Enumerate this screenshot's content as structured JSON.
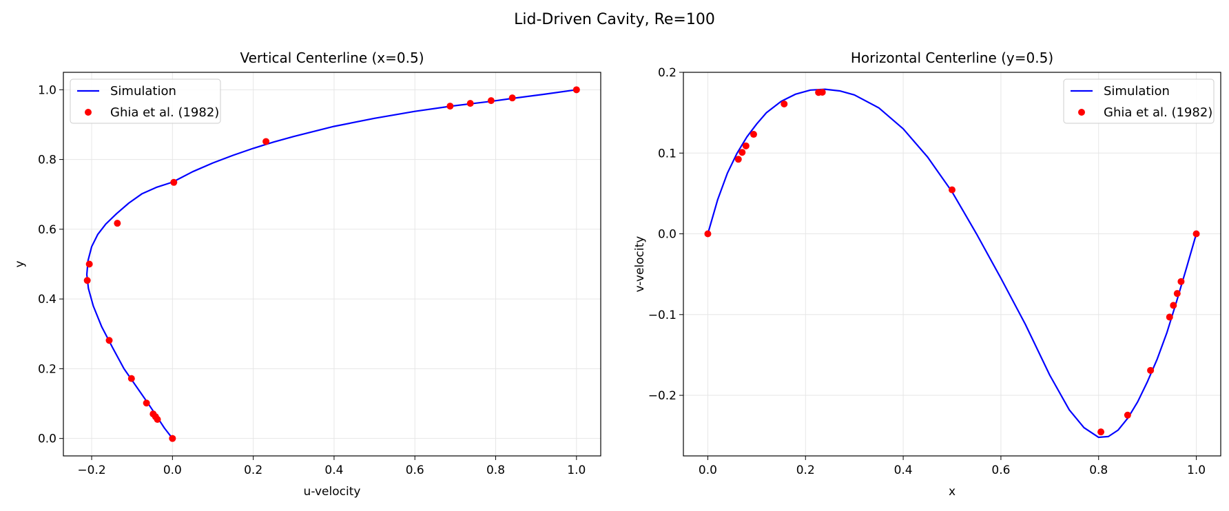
{
  "figure": {
    "suptitle": "Lid-Driven Cavity, Re=100"
  },
  "colors": {
    "simulation": "#0000ff",
    "reference": "#ff0000",
    "grid": "#e6e6e6"
  },
  "chart_data": [
    {
      "type": "line",
      "title": "Vertical Centerline (x=0.5)",
      "xlabel": "u-velocity",
      "ylabel": "y",
      "xlim": [
        -0.27,
        1.06
      ],
      "ylim": [
        -0.05,
        1.05
      ],
      "xticks": [
        -0.2,
        0.0,
        0.2,
        0.4,
        0.6,
        0.8,
        1.0
      ],
      "xtick_labels": [
        "−0.2",
        "0.0",
        "0.2",
        "0.4",
        "0.6",
        "0.8",
        "1.0"
      ],
      "yticks": [
        0.0,
        0.2,
        0.4,
        0.6,
        0.8,
        1.0
      ],
      "ytick_labels": [
        "0.0",
        "0.2",
        "0.4",
        "0.6",
        "0.8",
        "1.0"
      ],
      "grid": true,
      "legend_position": "upper-left",
      "series": [
        {
          "name": "Simulation",
          "style": "line",
          "x": [
            0.0,
            -0.02,
            -0.037,
            -0.06,
            -0.09,
            -0.12,
            -0.148,
            -0.175,
            -0.196,
            -0.208,
            -0.212,
            -0.209,
            -0.2,
            -0.185,
            -0.165,
            -0.138,
            -0.108,
            -0.075,
            -0.04,
            0.0,
            0.05,
            0.1,
            0.15,
            0.2,
            0.25,
            0.3,
            0.4,
            0.5,
            0.6,
            0.69,
            0.74,
            0.79,
            0.84,
            0.92,
            1.0
          ],
          "y": [
            0.0,
            0.03,
            0.06,
            0.1,
            0.15,
            0.2,
            0.26,
            0.32,
            0.38,
            0.43,
            0.47,
            0.51,
            0.55,
            0.585,
            0.615,
            0.645,
            0.675,
            0.702,
            0.72,
            0.735,
            0.765,
            0.79,
            0.812,
            0.832,
            0.85,
            0.866,
            0.895,
            0.918,
            0.938,
            0.953,
            0.96,
            0.967,
            0.975,
            0.987,
            1.0
          ]
        },
        {
          "name": "Ghia et al. (1982)",
          "style": "marker",
          "x": [
            0.0,
            -0.0372,
            -0.0419,
            -0.0478,
            -0.0643,
            -0.1015,
            -0.1566,
            -0.2109,
            -0.2058,
            -0.1364,
            0.0033,
            0.2315,
            0.6872,
            0.7372,
            0.7887,
            0.8412,
            1.0
          ],
          "y": [
            0.0,
            0.0547,
            0.0625,
            0.0703,
            0.1016,
            0.1719,
            0.2813,
            0.4531,
            0.5,
            0.6172,
            0.7344,
            0.8516,
            0.9531,
            0.9609,
            0.9688,
            0.9766,
            1.0
          ]
        }
      ]
    },
    {
      "type": "line",
      "title": "Horizontal Centerline (y=0.5)",
      "xlabel": "x",
      "ylabel": "v-velocity",
      "xlim": [
        -0.05,
        1.05
      ],
      "ylim": [
        -0.275,
        0.2
      ],
      "xticks": [
        0.0,
        0.2,
        0.4,
        0.6,
        0.8,
        1.0
      ],
      "xtick_labels": [
        "0.0",
        "0.2",
        "0.4",
        "0.6",
        "0.8",
        "1.0"
      ],
      "yticks": [
        -0.2,
        -0.1,
        0.0,
        0.1,
        0.2
      ],
      "ytick_labels": [
        "−0.2",
        "−0.1",
        "0.0",
        "0.1",
        "0.2"
      ],
      "grid": true,
      "legend_position": "upper-right",
      "series": [
        {
          "name": "Simulation",
          "style": "line",
          "x": [
            0.0,
            0.02,
            0.04,
            0.06,
            0.08,
            0.1,
            0.12,
            0.15,
            0.18,
            0.21,
            0.24,
            0.27,
            0.3,
            0.35,
            0.4,
            0.45,
            0.5,
            0.55,
            0.6,
            0.65,
            0.7,
            0.74,
            0.77,
            0.8,
            0.82,
            0.84,
            0.86,
            0.88,
            0.9,
            0.92,
            0.94,
            0.96,
            0.98,
            1.0
          ],
          "y": [
            0.0,
            0.042,
            0.075,
            0.1,
            0.12,
            0.136,
            0.15,
            0.164,
            0.173,
            0.178,
            0.179,
            0.177,
            0.172,
            0.156,
            0.13,
            0.095,
            0.052,
            0.0,
            -0.055,
            -0.112,
            -0.175,
            -0.218,
            -0.24,
            -0.252,
            -0.251,
            -0.243,
            -0.228,
            -0.208,
            -0.183,
            -0.155,
            -0.122,
            -0.083,
            -0.042,
            0.0
          ]
        },
        {
          "name": "Ghia et al. (1982)",
          "style": "marker",
          "x": [
            0.0,
            0.0625,
            0.0703,
            0.0781,
            0.0938,
            0.1563,
            0.2266,
            0.2344,
            0.5,
            0.8047,
            0.8594,
            0.9063,
            0.9453,
            0.9531,
            0.9609,
            0.9688,
            1.0
          ],
          "y": [
            0.0,
            0.0923,
            0.1009,
            0.1089,
            0.1232,
            0.1608,
            0.1751,
            0.1753,
            0.0545,
            -0.2453,
            -0.2245,
            -0.1691,
            -0.1031,
            -0.0886,
            -0.0739,
            -0.0591,
            0.0
          ]
        }
      ]
    }
  ]
}
